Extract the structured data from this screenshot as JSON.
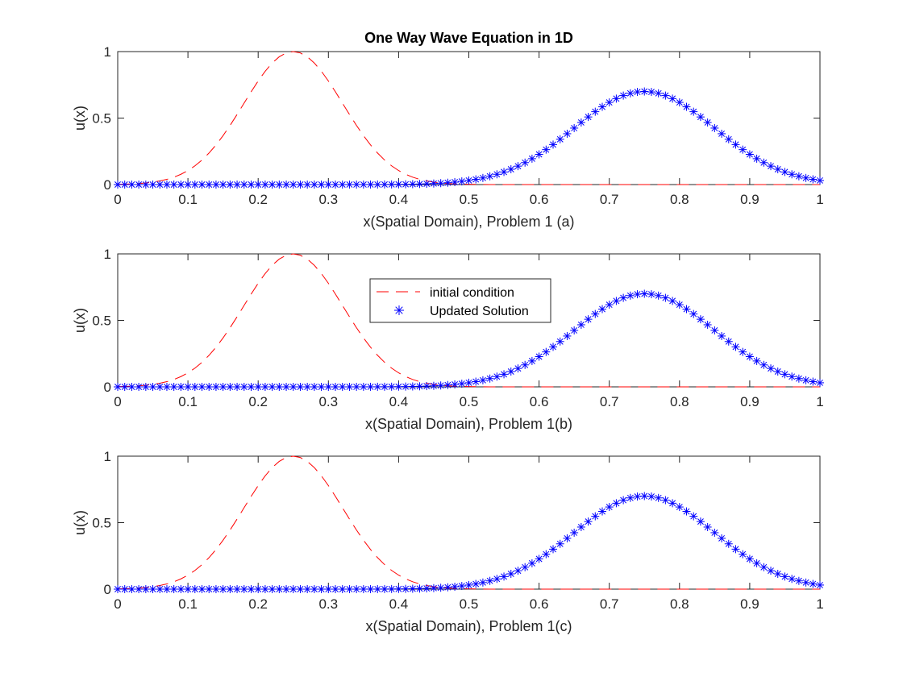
{
  "figure_title": "One Way Wave Equation in 1D",
  "legend": {
    "entries": [
      "initial condition",
      "Updated Solution"
    ]
  },
  "colors": {
    "initial": "#ff0000",
    "updated": "#0000ff",
    "axes": "#262626"
  },
  "chart_data": [
    {
      "type": "line",
      "title": "One Way Wave Equation in 1D",
      "xlabel": "x(Spatial Domain), Problem 1 (a)",
      "ylabel": "u(x)",
      "xlim": [
        0,
        1
      ],
      "ylim": [
        0,
        1
      ],
      "xticks": [
        "0",
        "0.1",
        "0.2",
        "0.3",
        "0.4",
        "0.5",
        "0.6",
        "0.7",
        "0.8",
        "0.9",
        "1"
      ],
      "yticks": [
        "0",
        "0.5",
        "1"
      ],
      "grid": false,
      "series": [
        {
          "name": "initial condition",
          "style": "dashed",
          "function": "exp(-100*(x-0.25)^2)",
          "x_range": [
            0,
            1
          ],
          "samples": 101
        },
        {
          "name": "Updated Solution",
          "style": "asterisk",
          "function": "0.7*exp(-50*(x-0.75)^2)",
          "x_range": [
            0,
            1
          ],
          "samples": 101
        }
      ]
    },
    {
      "type": "line",
      "xlabel": "x(Spatial Domain), Problem 1(b)",
      "ylabel": "u(x)",
      "xlim": [
        0,
        1
      ],
      "ylim": [
        0,
        1
      ],
      "xticks": [
        "0",
        "0.1",
        "0.2",
        "0.3",
        "0.4",
        "0.5",
        "0.6",
        "0.7",
        "0.8",
        "0.9",
        "1"
      ],
      "yticks": [
        "0",
        "0.5",
        "1"
      ],
      "grid": false,
      "legend_position": "upper-center",
      "series": [
        {
          "name": "initial condition",
          "style": "dashed",
          "function": "exp(-100*(x-0.25)^2)",
          "x_range": [
            0,
            1
          ],
          "samples": 101
        },
        {
          "name": "Updated Solution",
          "style": "asterisk",
          "function": "0.7*exp(-50*(x-0.75)^2)",
          "x_range": [
            0,
            1
          ],
          "samples": 101
        }
      ]
    },
    {
      "type": "line",
      "xlabel": "x(Spatial Domain), Problem 1(c)",
      "ylabel": "u(x)",
      "xlim": [
        0,
        1
      ],
      "ylim": [
        0,
        1
      ],
      "xticks": [
        "0",
        "0.1",
        "0.2",
        "0.3",
        "0.4",
        "0.5",
        "0.6",
        "0.7",
        "0.8",
        "0.9",
        "1"
      ],
      "yticks": [
        "0",
        "0.5",
        "1"
      ],
      "grid": false,
      "series": [
        {
          "name": "initial condition",
          "style": "dashed",
          "function": "exp(-100*(x-0.25)^2)",
          "x_range": [
            0,
            1
          ],
          "samples": 101
        },
        {
          "name": "Updated Solution",
          "style": "asterisk",
          "function": "0.7*exp(-50*(x-0.75)^2)",
          "x_range": [
            0,
            1
          ],
          "samples": 101
        }
      ]
    }
  ]
}
